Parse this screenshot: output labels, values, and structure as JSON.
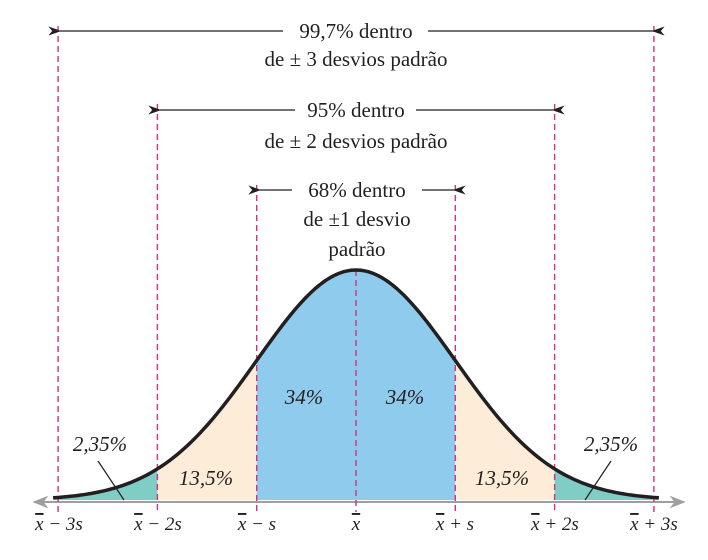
{
  "colors": {
    "center": "#8ecbed",
    "middle": "#fdedd8",
    "tail": "#7fcdc4",
    "curve": "#231f20",
    "guide": "#d6307f",
    "axis": "#9d9fa2",
    "text": "#231f20"
  },
  "brackets": [
    {
      "line1": "99,7% dentro",
      "line2": "de ± 3 desvios padrão",
      "line3": ""
    },
    {
      "line1": "95% dentro",
      "line2": "de ± 2 desvios padrão",
      "line3": ""
    },
    {
      "line1": "68% dentro",
      "line2": "de ±1 desvio",
      "line3": "padrão"
    }
  ],
  "regions": {
    "center_left": "34%",
    "center_right": "34%",
    "middle_left": "13,5%",
    "middle_right": "13,5%",
    "tail_left": "2,35%",
    "tail_right": "2,35%"
  },
  "ticks": [
    {
      "xbar": "x",
      "rest": " − 3s"
    },
    {
      "xbar": "x",
      "rest": " − 2s"
    },
    {
      "xbar": "x",
      "rest": " − s"
    },
    {
      "xbar": "x",
      "rest": ""
    },
    {
      "xbar": "x",
      "rest": " + s"
    },
    {
      "xbar": "x",
      "rest": " + 2s"
    },
    {
      "xbar": "x",
      "rest": " + 3s"
    }
  ]
}
